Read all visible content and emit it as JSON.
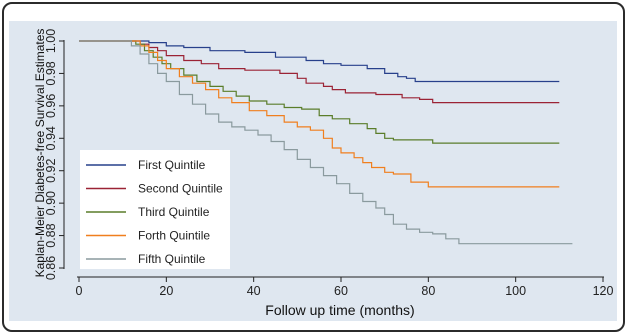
{
  "chart_data": {
    "type": "line",
    "xlabel": "Follow up time (months)",
    "ylabel": "Kaplan-Meier Diabetes-free Survival Estimates",
    "xlim": [
      0,
      120
    ],
    "ylim": [
      0.86,
      1.0
    ],
    "x_ticks": [
      0,
      20,
      40,
      60,
      80,
      100,
      120
    ],
    "y_ticks": [
      0.86,
      0.88,
      0.9,
      0.92,
      0.94,
      0.96,
      0.98,
      1.0
    ],
    "x_tick_labels": [
      "0",
      "20",
      "40",
      "60",
      "80",
      "100",
      "120"
    ],
    "y_tick_labels": [
      "0.86",
      "0.88",
      "0.90",
      "0.92",
      "0.94",
      "0.96",
      "0.98",
      "1.00"
    ],
    "legend_position": "bottom-left",
    "series": [
      {
        "name": "First Quintile",
        "color": "#27408b",
        "points": [
          [
            0,
            1.0
          ],
          [
            12,
            1.0
          ],
          [
            16,
            0.999
          ],
          [
            20,
            0.997
          ],
          [
            24,
            0.996
          ],
          [
            30,
            0.994
          ],
          [
            38,
            0.993
          ],
          [
            45,
            0.99
          ],
          [
            52,
            0.988
          ],
          [
            56,
            0.986
          ],
          [
            60,
            0.985
          ],
          [
            66,
            0.983
          ],
          [
            70,
            0.98
          ],
          [
            73,
            0.978
          ],
          [
            75,
            0.977
          ],
          [
            77,
            0.975
          ],
          [
            110,
            0.975
          ]
        ]
      },
      {
        "name": "Second Quintile",
        "color": "#9b2335",
        "points": [
          [
            0,
            1.0
          ],
          [
            12,
            1.0
          ],
          [
            14,
            0.998
          ],
          [
            16,
            0.996
          ],
          [
            18,
            0.994
          ],
          [
            20,
            0.991
          ],
          [
            24,
            0.988
          ],
          [
            28,
            0.986
          ],
          [
            32,
            0.983
          ],
          [
            38,
            0.982
          ],
          [
            46,
            0.98
          ],
          [
            50,
            0.977
          ],
          [
            52,
            0.974
          ],
          [
            56,
            0.972
          ],
          [
            58,
            0.97
          ],
          [
            61,
            0.968
          ],
          [
            68,
            0.967
          ],
          [
            74,
            0.965
          ],
          [
            78,
            0.964
          ],
          [
            81,
            0.962
          ],
          [
            110,
            0.962
          ]
        ]
      },
      {
        "name": "Third Quintile",
        "color": "#5a7d2a",
        "points": [
          [
            0,
            1.0
          ],
          [
            10,
            1.0
          ],
          [
            13,
            0.998
          ],
          [
            15,
            0.994
          ],
          [
            17,
            0.99
          ],
          [
            19,
            0.986
          ],
          [
            21,
            0.983
          ],
          [
            24,
            0.979
          ],
          [
            27,
            0.975
          ],
          [
            30,
            0.972
          ],
          [
            33,
            0.969
          ],
          [
            36,
            0.966
          ],
          [
            39,
            0.963
          ],
          [
            43,
            0.961
          ],
          [
            47,
            0.959
          ],
          [
            51,
            0.958
          ],
          [
            55,
            0.954
          ],
          [
            58,
            0.952
          ],
          [
            62,
            0.949
          ],
          [
            66,
            0.946
          ],
          [
            68,
            0.943
          ],
          [
            70,
            0.94
          ],
          [
            72,
            0.939
          ],
          [
            75,
            0.939
          ],
          [
            81,
            0.937
          ],
          [
            110,
            0.937
          ]
        ]
      },
      {
        "name": "Forth Quintile",
        "color": "#f07f1e",
        "points": [
          [
            0,
            1.0
          ],
          [
            12,
            1.0
          ],
          [
            14,
            0.997
          ],
          [
            16,
            0.993
          ],
          [
            18,
            0.988
          ],
          [
            20,
            0.983
          ],
          [
            23,
            0.978
          ],
          [
            26,
            0.974
          ],
          [
            29,
            0.97
          ],
          [
            32,
            0.965
          ],
          [
            35,
            0.962
          ],
          [
            39,
            0.957
          ],
          [
            43,
            0.954
          ],
          [
            47,
            0.95
          ],
          [
            50,
            0.947
          ],
          [
            53,
            0.945
          ],
          [
            56,
            0.94
          ],
          [
            58,
            0.934
          ],
          [
            60,
            0.931
          ],
          [
            63,
            0.928
          ],
          [
            65,
            0.925
          ],
          [
            67,
            0.922
          ],
          [
            70,
            0.919
          ],
          [
            72,
            0.918
          ],
          [
            76,
            0.913
          ],
          [
            80,
            0.91
          ],
          [
            110,
            0.91
          ]
        ]
      },
      {
        "name": "Fifth Quintile",
        "color": "#8a9a9e",
        "points": [
          [
            0,
            1.0
          ],
          [
            10,
            1.0
          ],
          [
            12,
            0.997
          ],
          [
            14,
            0.992
          ],
          [
            16,
            0.986
          ],
          [
            18,
            0.98
          ],
          [
            20,
            0.975
          ],
          [
            23,
            0.967
          ],
          [
            26,
            0.961
          ],
          [
            29,
            0.955
          ],
          [
            32,
            0.95
          ],
          [
            35,
            0.947
          ],
          [
            38,
            0.945
          ],
          [
            41,
            0.942
          ],
          [
            44,
            0.938
          ],
          [
            47,
            0.933
          ],
          [
            50,
            0.927
          ],
          [
            53,
            0.922
          ],
          [
            56,
            0.917
          ],
          [
            59,
            0.912
          ],
          [
            62,
            0.906
          ],
          [
            65,
            0.901
          ],
          [
            68,
            0.897
          ],
          [
            70,
            0.893
          ],
          [
            72,
            0.887
          ],
          [
            75,
            0.884
          ],
          [
            78,
            0.882
          ],
          [
            81,
            0.881
          ],
          [
            84,
            0.878
          ],
          [
            87,
            0.875
          ],
          [
            113,
            0.875
          ]
        ]
      }
    ]
  }
}
